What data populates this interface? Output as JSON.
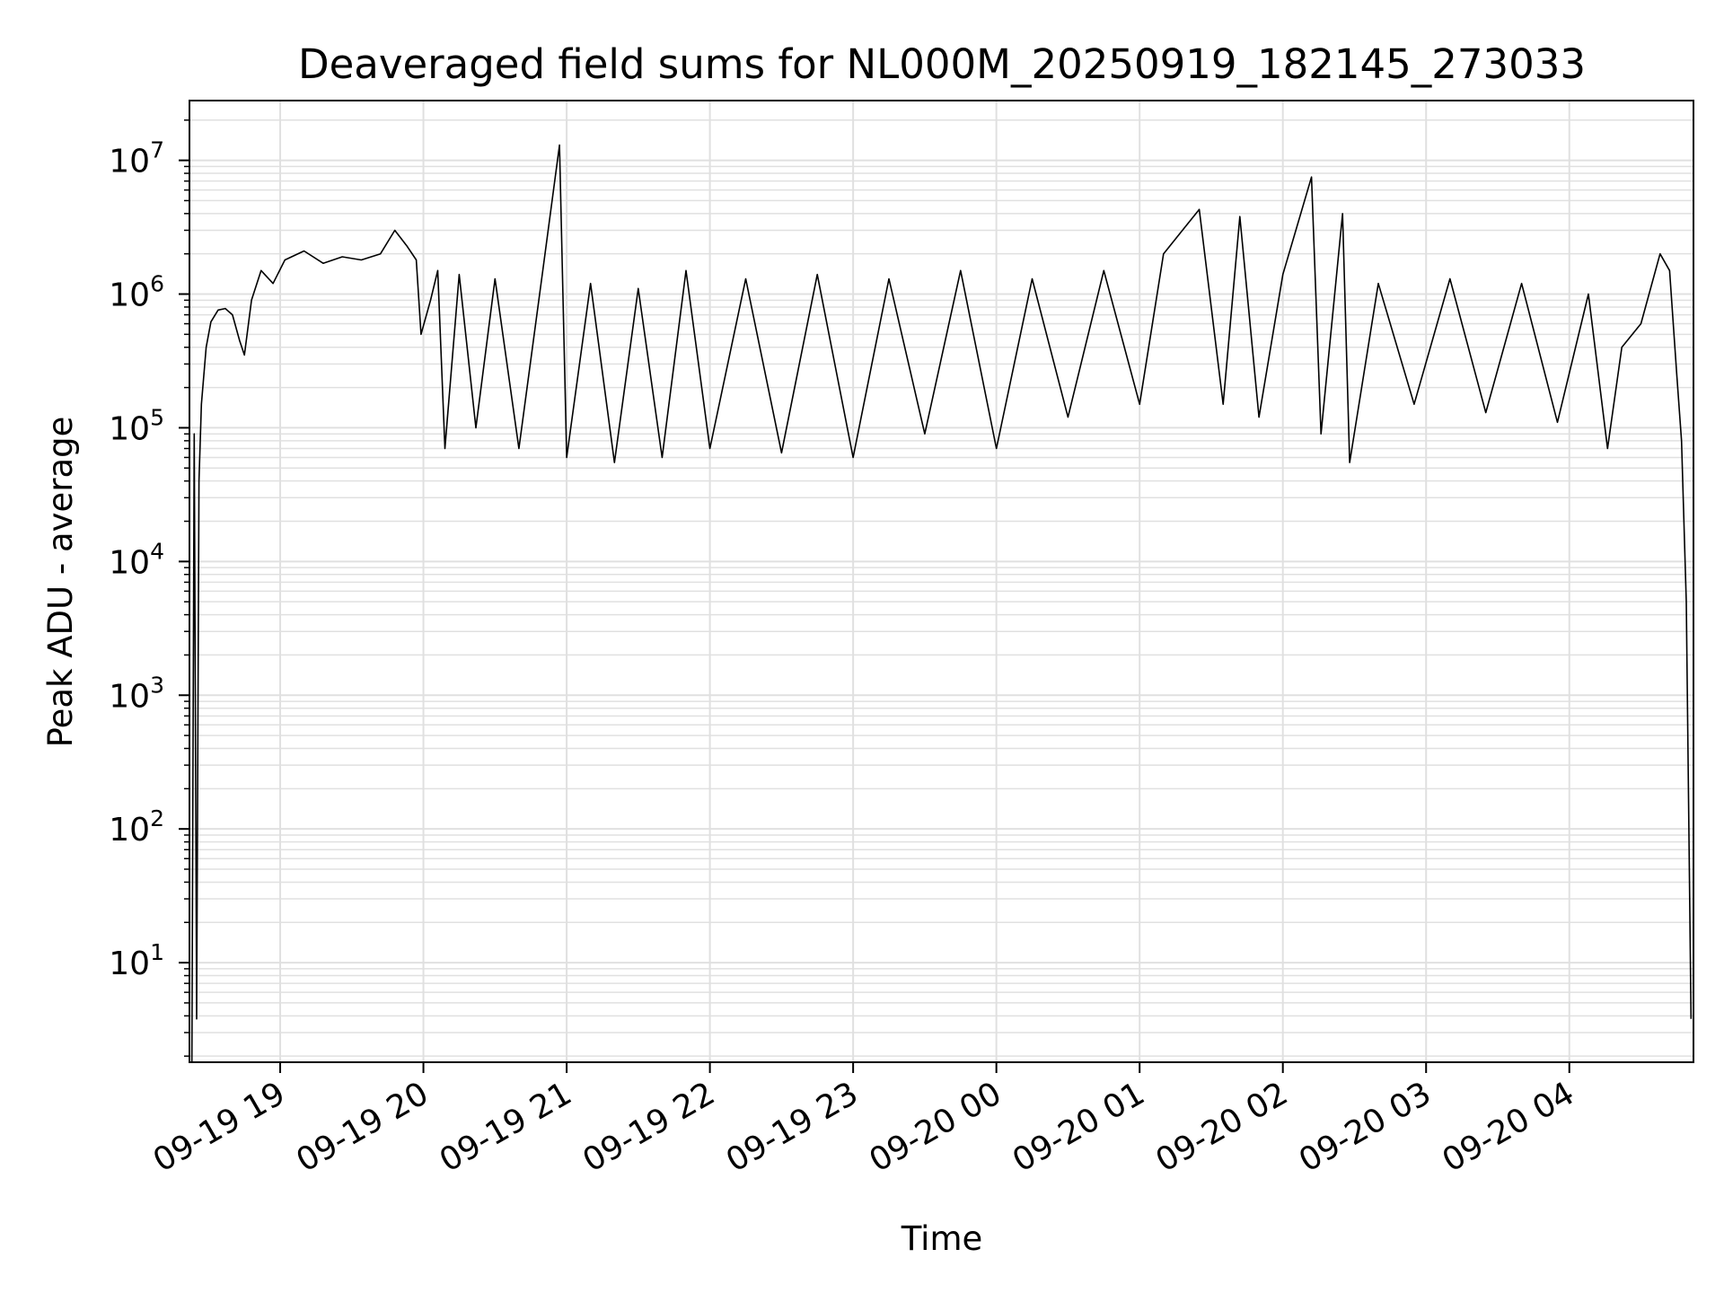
{
  "chart_data": {
    "type": "line",
    "title": "Deaveraged field sums for NL000M_20250919_182145_273033",
    "xlabel": "Time",
    "ylabel": "Peak ADU - average",
    "yscale": "log",
    "ylim": [
      1.8,
      28000000
    ],
    "xlim": [
      "09-19 18:22",
      "09-20 04:52"
    ],
    "grid": true,
    "legend": "none",
    "line_color": "#000000",
    "grid_color": "#e0e0e0",
    "x_ticks": [
      "09-19 19",
      "09-19 20",
      "09-19 21",
      "09-19 22",
      "09-19 23",
      "09-20 00",
      "09-20 01",
      "09-20 02",
      "09-20 03",
      "09-20 04"
    ],
    "y_ticks": [
      {
        "value": 10,
        "base": "10",
        "exp": "1"
      },
      {
        "value": 100,
        "base": "10",
        "exp": "2"
      },
      {
        "value": 1000,
        "base": "10",
        "exp": "3"
      },
      {
        "value": 10000,
        "base": "10",
        "exp": "4"
      },
      {
        "value": 100000,
        "base": "10",
        "exp": "5"
      },
      {
        "value": 1000000,
        "base": "10",
        "exp": "6"
      },
      {
        "value": 10000000,
        "base": "10",
        "exp": "7"
      }
    ],
    "series": [
      {
        "values": [
          [
            "09-19 18:23",
            1.8
          ],
          [
            "09-19 18:24",
            90000
          ],
          [
            "09-19 18:25",
            3.8
          ],
          [
            "09-19 18:26",
            40000
          ],
          [
            "09-19 18:27",
            150000
          ],
          [
            "09-19 18:29",
            400000
          ],
          [
            "09-19 18:31",
            620000
          ],
          [
            "09-19 18:34",
            760000
          ],
          [
            "09-19 18:37",
            780000
          ],
          [
            "09-19 18:40",
            700000
          ],
          [
            "09-19 18:43",
            450000
          ],
          [
            "09-19 18:45",
            350000
          ],
          [
            "09-19 18:48",
            900000
          ],
          [
            "09-19 18:52",
            1500000
          ],
          [
            "09-19 18:57",
            1200000
          ],
          [
            "09-19 19:02",
            1800000
          ],
          [
            "09-19 19:10",
            2100000
          ],
          [
            "09-19 19:18",
            1700000
          ],
          [
            "09-19 19:26",
            1900000
          ],
          [
            "09-19 19:34",
            1800000
          ],
          [
            "09-19 19:42",
            2000000
          ],
          [
            "09-19 19:48",
            3000000
          ],
          [
            "09-19 19:53",
            2300000
          ],
          [
            "09-19 19:57",
            1800000
          ],
          [
            "09-19 19:59",
            500000
          ],
          [
            "09-19 20:03",
            900000
          ],
          [
            "09-19 20:06",
            1500000
          ],
          [
            "09-19 20:09",
            70000
          ],
          [
            "09-19 20:15",
            1400000
          ],
          [
            "09-19 20:22",
            100000
          ],
          [
            "09-19 20:30",
            1300000
          ],
          [
            "09-19 20:40",
            70000
          ],
          [
            "09-19 20:50",
            1500000
          ],
          [
            "09-19 20:57",
            13000000
          ],
          [
            "09-19 21:00",
            60000
          ],
          [
            "09-19 21:10",
            1200000
          ],
          [
            "09-19 21:20",
            55000
          ],
          [
            "09-19 21:30",
            1100000
          ],
          [
            "09-19 21:40",
            60000
          ],
          [
            "09-19 21:50",
            1500000
          ],
          [
            "09-19 22:00",
            70000
          ],
          [
            "09-19 22:15",
            1300000
          ],
          [
            "09-19 22:30",
            65000
          ],
          [
            "09-19 22:45",
            1400000
          ],
          [
            "09-19 23:00",
            60000
          ],
          [
            "09-19 23:15",
            1300000
          ],
          [
            "09-19 23:30",
            90000
          ],
          [
            "09-19 23:45",
            1500000
          ],
          [
            "09-20 00:00",
            70000
          ],
          [
            "09-20 00:15",
            1300000
          ],
          [
            "09-20 00:30",
            120000
          ],
          [
            "09-20 00:45",
            1500000
          ],
          [
            "09-20 01:00",
            150000
          ],
          [
            "09-20 01:10",
            2000000
          ],
          [
            "09-20 01:25",
            4300000
          ],
          [
            "09-20 01:35",
            150000
          ],
          [
            "09-20 01:42",
            3800000
          ],
          [
            "09-20 01:50",
            120000
          ],
          [
            "09-20 02:00",
            1400000
          ],
          [
            "09-20 02:12",
            7500000
          ],
          [
            "09-20 02:16",
            90000
          ],
          [
            "09-20 02:25",
            4000000
          ],
          [
            "09-20 02:28",
            55000
          ],
          [
            "09-20 02:40",
            1200000
          ],
          [
            "09-20 02:55",
            150000
          ],
          [
            "09-20 03:10",
            1300000
          ],
          [
            "09-20 03:25",
            130000
          ],
          [
            "09-20 03:40",
            1200000
          ],
          [
            "09-20 03:55",
            110000
          ],
          [
            "09-20 04:08",
            1000000
          ],
          [
            "09-20 04:16",
            70000
          ],
          [
            "09-20 04:22",
            400000
          ],
          [
            "09-20 04:30",
            600000
          ],
          [
            "09-20 04:38",
            2000000
          ],
          [
            "09-20 04:42",
            1500000
          ],
          [
            "09-20 04:45",
            250000
          ],
          [
            "09-20 04:47",
            80000
          ],
          [
            "09-20 04:49",
            5000
          ],
          [
            "09-20 04:50",
            130
          ],
          [
            "09-20 04:51",
            3.8
          ]
        ]
      }
    ]
  }
}
